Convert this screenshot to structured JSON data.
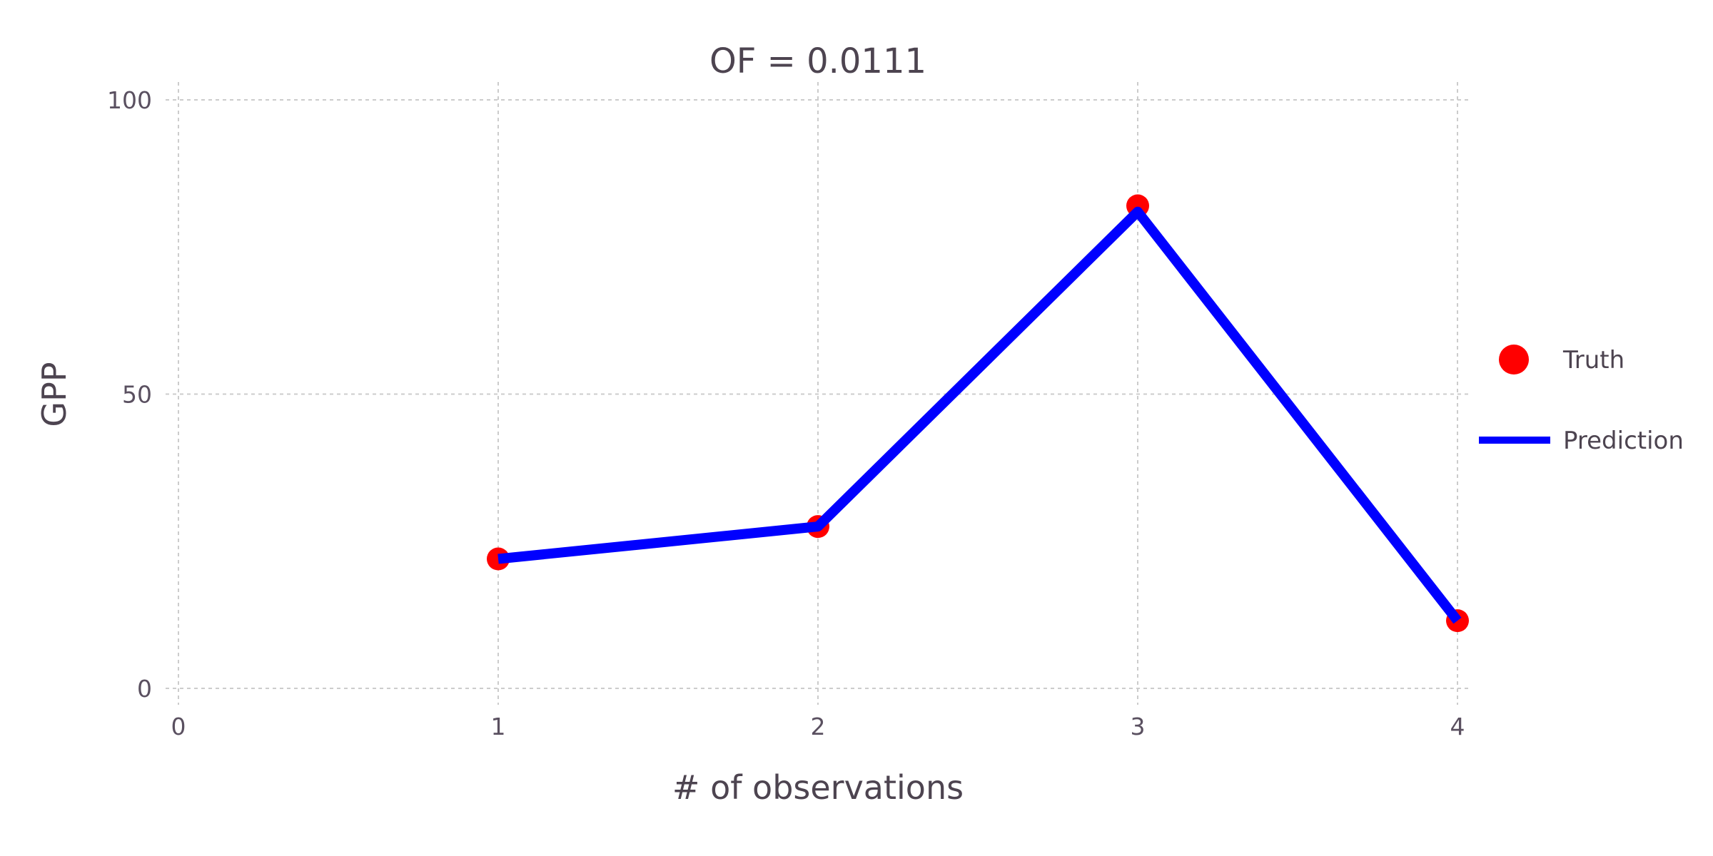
{
  "chart_data": {
    "type": "line",
    "title": "OF = 0.0111",
    "xlabel": "# of observations",
    "ylabel": "GPP",
    "xlim": [
      0,
      4
    ],
    "ylim": [
      0,
      100
    ],
    "x_ticks": [
      "0",
      "1",
      "2",
      "3",
      "4"
    ],
    "y_ticks": [
      "0",
      "50",
      "100"
    ],
    "grid": true,
    "legend_position": "right",
    "series": [
      {
        "name": "Truth",
        "kind": "scatter",
        "color": "#ff0000",
        "x": [
          1,
          2,
          3,
          4
        ],
        "y": [
          22.0,
          27.5,
          82.0,
          11.5
        ]
      },
      {
        "name": "Prediction",
        "kind": "line",
        "color": "#0000ff",
        "x": [
          1,
          2,
          3,
          4
        ],
        "y": [
          22.0,
          27.5,
          81.0,
          11.5
        ]
      }
    ]
  }
}
